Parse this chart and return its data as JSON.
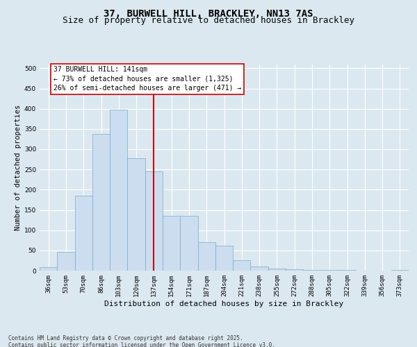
{
  "title1": "37, BURWELL HILL, BRACKLEY, NN13 7AS",
  "title2": "Size of property relative to detached houses in Brackley",
  "xlabel": "Distribution of detached houses by size in Brackley",
  "ylabel": "Number of detached properties",
  "bin_labels": [
    "36sqm",
    "53sqm",
    "70sqm",
    "86sqm",
    "103sqm",
    "120sqm",
    "137sqm",
    "154sqm",
    "171sqm",
    "187sqm",
    "204sqm",
    "221sqm",
    "238sqm",
    "255sqm",
    "272sqm",
    "288sqm",
    "305sqm",
    "322sqm",
    "339sqm",
    "356sqm",
    "373sqm"
  ],
  "bar_values": [
    8,
    46,
    186,
    338,
    397,
    277,
    246,
    135,
    135,
    70,
    62,
    25,
    11,
    5,
    4,
    2,
    1,
    1,
    0,
    0,
    2
  ],
  "bar_color": "#ccddf0",
  "bar_edge_color": "#7aaac8",
  "highlight_bin_index": 6,
  "highlight_line_color": "#cc0000",
  "annotation_line1": "37 BURWELL HILL: 141sqm",
  "annotation_line2": "← 73% of detached houses are smaller (1,325)",
  "annotation_line3": "26% of semi-detached houses are larger (471) →",
  "annotation_box_facecolor": "#ffffff",
  "annotation_box_edgecolor": "#cc0000",
  "ylim_max": 510,
  "yticks": [
    0,
    50,
    100,
    150,
    200,
    250,
    300,
    350,
    400,
    450,
    500
  ],
  "bg_color": "#dce8f0",
  "grid_color": "#ffffff",
  "footer_text": "Contains HM Land Registry data © Crown copyright and database right 2025.\nContains public sector information licensed under the Open Government Licence v3.0.",
  "title1_fontsize": 10,
  "title2_fontsize": 9,
  "xlabel_fontsize": 8,
  "ylabel_fontsize": 7.5,
  "tick_fontsize": 6.5,
  "annot_fontsize": 7,
  "footer_fontsize": 5.5
}
